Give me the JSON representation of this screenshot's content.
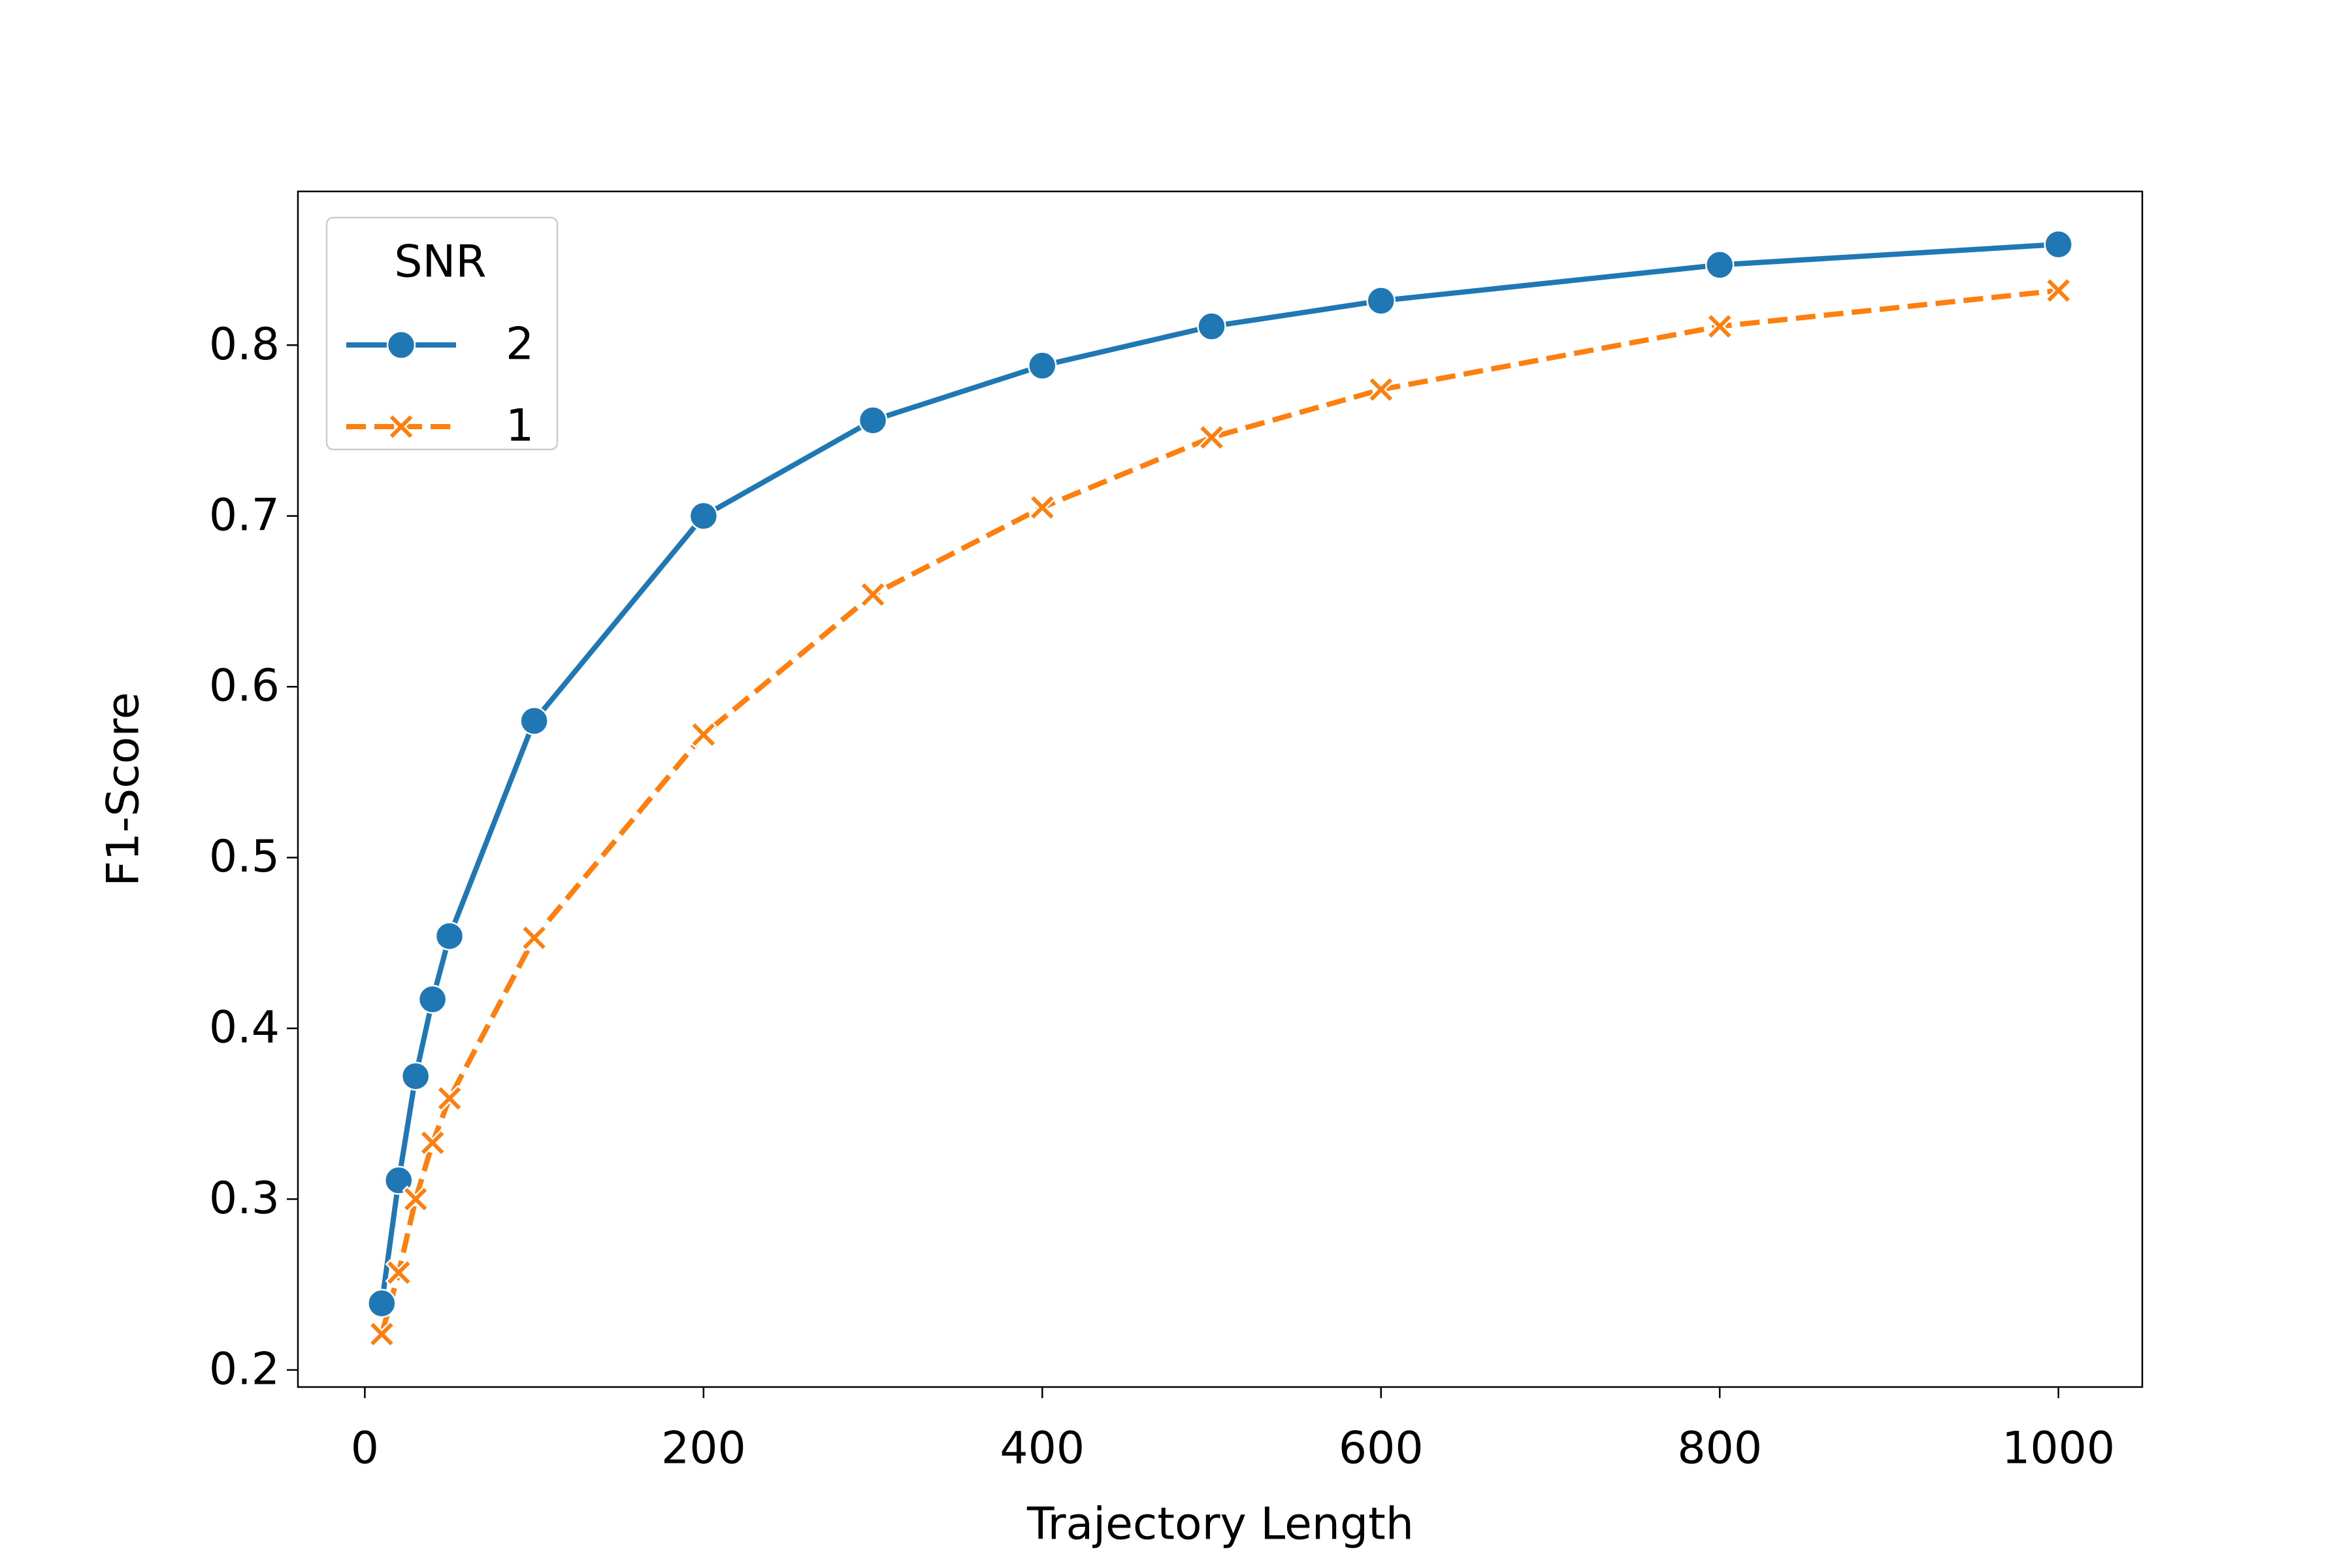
{
  "chart_data": {
    "type": "line",
    "xlabel": "Trajectory Length",
    "ylabel": "F1-Score",
    "x": [
      10,
      20,
      30,
      40,
      50,
      100,
      200,
      300,
      400,
      500,
      600,
      800,
      1000
    ],
    "series": [
      {
        "name": "2",
        "color": "#1f77b4",
        "marker": "circle",
        "dash": "solid",
        "values": [
          0.239,
          0.311,
          0.372,
          0.417,
          0.454,
          0.58,
          0.7,
          0.756,
          0.788,
          0.811,
          0.826,
          0.847,
          0.859
        ]
      },
      {
        "name": "1",
        "color": "#ff7f0e",
        "marker": "x",
        "dash": "dashed",
        "values": [
          0.221,
          0.257,
          0.3,
          0.333,
          0.359,
          0.453,
          0.572,
          0.654,
          0.705,
          0.746,
          0.774,
          0.811,
          0.832
        ]
      }
    ],
    "xlim": [
      -39.5,
      1049.5
    ],
    "ylim": [
      0.19,
      0.89
    ],
    "xticks": [
      0,
      200,
      400,
      600,
      800,
      1000
    ],
    "yticks": [
      0.2,
      0.3,
      0.4,
      0.5,
      0.6,
      0.7,
      0.8
    ],
    "legend_title": "SNR",
    "legend_loc": "upper left",
    "grid": false
  }
}
